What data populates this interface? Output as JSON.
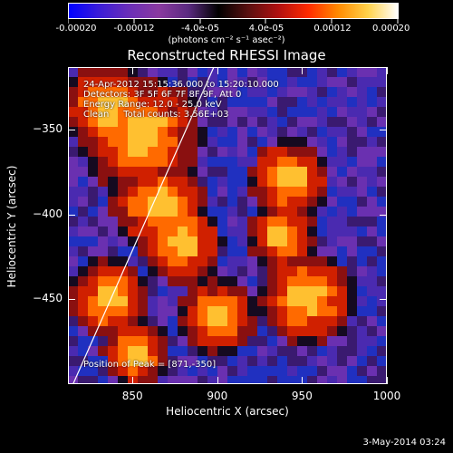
{
  "colorbar": {
    "colors": [
      "#0000ff",
      "#3a1cd8",
      "#6a2eb8",
      "#8a3aa0",
      "#5a2a80",
      "#000000",
      "#5a1010",
      "#b01010",
      "#ff2a00",
      "#ff8a00",
      "#ffd24a",
      "#ffffff"
    ],
    "tick_labels": [
      {
        "text": "-0.00020",
        "frac": 0.0
      },
      {
        "text": "-0.00012",
        "frac": 0.2
      },
      {
        "text": "-4.0e-05",
        "frac": 0.4
      },
      {
        "text": "4.0e-05",
        "frac": 0.6
      },
      {
        "text": "0.00012",
        "frac": 0.8
      },
      {
        "text": "0.00020",
        "frac": 1.0
      }
    ],
    "unit_label": "(photons cm⁻² s⁻¹ asec⁻²)"
  },
  "plot": {
    "title": "Reconstructed RHESSI Image",
    "annotations": {
      "line1": "24-Apr-2012 15:15:36.000 to 15:20:10.000",
      "line2": "Detectors: 3F 5F 6F 7F 8F 9F, Att 0",
      "line3": "Energy Range: 12.0 - 25.0 keV",
      "line4": "Clean     Total counts: 3.56E+03",
      "peak": "Position of Peak = [871,-350]"
    },
    "x_axis": {
      "label": "Heliocentric X (arcsec)",
      "ticks": [
        {
          "value": 850,
          "text": "850"
        },
        {
          "value": 900,
          "text": "900"
        },
        {
          "value": 950,
          "text": "950"
        },
        {
          "value": 1000,
          "text": "1000"
        }
      ],
      "range": [
        812,
        1000
      ]
    },
    "y_axis": {
      "label": "Heliocentric Y (arcsec)",
      "ticks": [
        {
          "value": -350,
          "text": "−350"
        },
        {
          "value": -400,
          "text": "−400"
        },
        {
          "value": -450,
          "text": "−450"
        }
      ],
      "range": [
        -500,
        -313
      ]
    },
    "limb_line": {
      "x1": 815,
      "y1": -500,
      "x2": 898,
      "y2": -313
    }
  },
  "footer": {
    "date": "3-May-2014 03:24"
  }
}
